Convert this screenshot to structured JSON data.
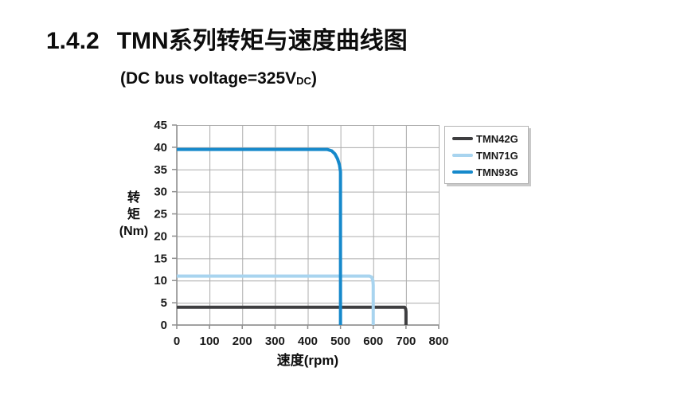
{
  "page": {
    "section_number": "1.4.2",
    "section_title": "TMN系列转矩与速度曲线图",
    "subtitle_prefix": "(DC bus voltage=325V",
    "subtitle_sub": "DC",
    "subtitle_suffix": ")"
  },
  "chart_data": {
    "type": "line",
    "title": "1.4.2 TMN系列转矩与速度曲线图",
    "subtitle": "(DC bus voltage=325VDC)",
    "xlabel": "速度(rpm)",
    "ylabel": "转矩(Nm)",
    "ylabel_lines": [
      "转",
      "矩",
      "(Nm)"
    ],
    "xlim": [
      0,
      800
    ],
    "ylim": [
      0,
      45
    ],
    "x_ticks": [
      0,
      100,
      200,
      300,
      400,
      500,
      600,
      700,
      800
    ],
    "y_ticks": [
      0,
      5,
      10,
      15,
      20,
      25,
      30,
      35,
      40,
      45
    ],
    "grid": true,
    "legend_position": "outside-top-right",
    "series": [
      {
        "name": "TMN42G",
        "color": "#3E3E40",
        "rated_torque_nm": 4,
        "max_speed_rpm": 700,
        "points": [
          [
            0,
            4
          ],
          [
            696,
            4
          ],
          [
            699,
            3.6
          ],
          [
            700,
            3
          ],
          [
            700,
            0
          ]
        ]
      },
      {
        "name": "TMN71G",
        "color": "#A8D4EF",
        "rated_torque_nm": 11,
        "max_speed_rpm": 600,
        "points": [
          [
            0,
            11
          ],
          [
            589,
            11
          ],
          [
            595,
            10.8
          ],
          [
            599,
            10
          ],
          [
            600,
            9
          ],
          [
            600,
            0
          ]
        ]
      },
      {
        "name": "TMN93G",
        "color": "#1689CB",
        "rated_torque_nm": 39.5,
        "max_speed_rpm": 500,
        "points": [
          [
            0,
            39.5
          ],
          [
            460,
            39.5
          ],
          [
            473,
            39.2
          ],
          [
            483,
            38.5
          ],
          [
            491,
            37.4
          ],
          [
            497,
            36
          ],
          [
            500,
            34.5
          ],
          [
            500,
            0
          ]
        ]
      }
    ],
    "colors": {
      "grid": "#ACACAC",
      "axis": "#8F8F8F",
      "tick_text": "#1A1A1A"
    }
  }
}
